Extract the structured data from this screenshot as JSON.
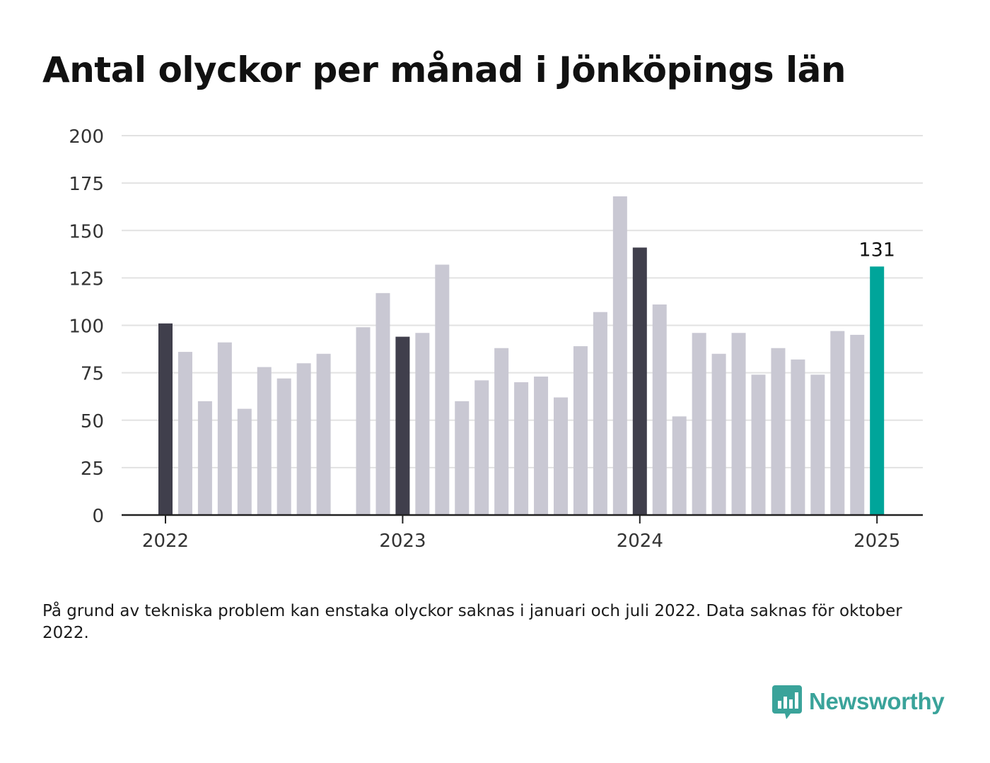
{
  "title": "Antal olyckor per månad i Jönköpings län",
  "footnote": "På grund av tekniska problem kan enstaka olyckor saknas i januari och juli 2022. Data saknas för oktober 2022.",
  "brand": {
    "name": "Newsworthy",
    "icon": "newsworthy-logo-icon"
  },
  "colors": {
    "january": "#403f4c",
    "regular": "#c9c8d3",
    "latest": "#00a59a",
    "grid": "#e2e2e2",
    "axis": "#222222",
    "brand": "#3aa39a"
  },
  "chart_data": {
    "type": "bar",
    "title": "Antal olyckor per månad i Jönköpings län",
    "xlabel": "",
    "ylabel": "",
    "ylim": [
      0,
      200
    ],
    "yticks": [
      "0",
      "25",
      "50",
      "75",
      "100",
      "125",
      "150",
      "175",
      "200"
    ],
    "xticks": [
      "2022",
      "2023",
      "2024",
      "2025"
    ],
    "grid": true,
    "categories": [
      "2022-01",
      "2022-02",
      "2022-03",
      "2022-04",
      "2022-05",
      "2022-06",
      "2022-07",
      "2022-08",
      "2022-09",
      "2022-10",
      "2022-11",
      "2022-12",
      "2023-01",
      "2023-02",
      "2023-03",
      "2023-04",
      "2023-05",
      "2023-06",
      "2023-07",
      "2023-08",
      "2023-09",
      "2023-10",
      "2023-11",
      "2023-12",
      "2024-01",
      "2024-02",
      "2024-03",
      "2024-04",
      "2024-05",
      "2024-06",
      "2024-07",
      "2024-08",
      "2024-09",
      "2024-10",
      "2024-11",
      "2024-12",
      "2025-01"
    ],
    "values": [
      101,
      86,
      60,
      91,
      56,
      78,
      72,
      80,
      85,
      null,
      99,
      117,
      94,
      96,
      132,
      60,
      71,
      88,
      70,
      73,
      62,
      89,
      107,
      168,
      141,
      111,
      52,
      96,
      85,
      96,
      74,
      88,
      82,
      74,
      97,
      95,
      131
    ],
    "highlighted_label": "131"
  }
}
